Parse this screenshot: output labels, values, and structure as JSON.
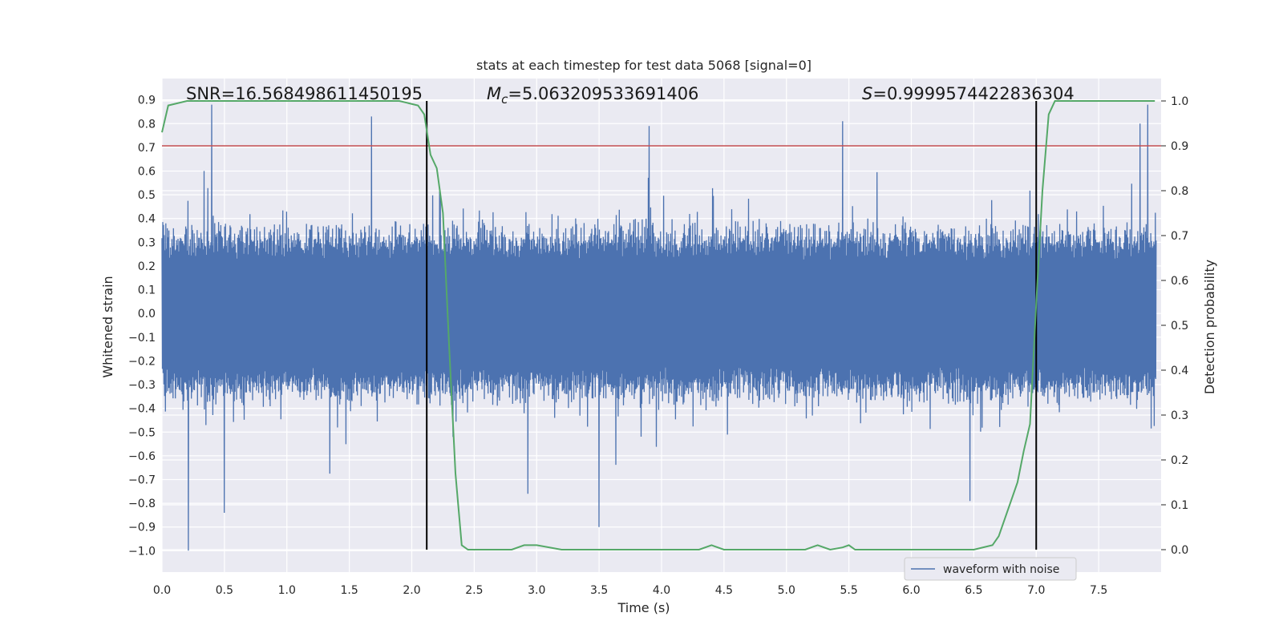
{
  "colors": {
    "background": "#eaeaf2",
    "grid": "#ffffff",
    "waveform": "#4c72b0",
    "detection": "#55a868",
    "threshold": "#c44e52",
    "marker": "#000000"
  },
  "chart_data": {
    "type": "line",
    "title": "stats at each timestep for test data 5068 [signal=0]",
    "xlabel": "Time (s)",
    "ylabel": "Whitened strain",
    "y2label": "Detection probability",
    "xlim": [
      0.0,
      8.0
    ],
    "ylim": [
      -1.09,
      0.99
    ],
    "y2lim": [
      -0.05,
      1.05
    ],
    "xticks": [
      "0.0",
      "0.5",
      "1.0",
      "1.5",
      "2.0",
      "2.5",
      "3.0",
      "3.5",
      "4.0",
      "4.5",
      "5.0",
      "5.5",
      "6.0",
      "6.5",
      "7.0",
      "7.5"
    ],
    "xtick_values": [
      0.0,
      0.5,
      1.0,
      1.5,
      2.0,
      2.5,
      3.0,
      3.5,
      4.0,
      4.5,
      5.0,
      5.5,
      6.0,
      6.5,
      7.0,
      7.5
    ],
    "yticks": [
      "0.9",
      "0.8",
      "0.7",
      "0.6",
      "0.5",
      "0.4",
      "0.3",
      "0.2",
      "0.1",
      "0.0",
      "−0.1",
      "−0.2",
      "−0.3",
      "−0.4",
      "−0.5",
      "−0.6",
      "−0.7",
      "−0.8",
      "−0.9",
      "−1.0"
    ],
    "ytick_values": [
      0.9,
      0.8,
      0.7,
      0.6,
      0.5,
      0.4,
      0.3,
      0.2,
      0.1,
      0.0,
      -0.1,
      -0.2,
      -0.3,
      -0.4,
      -0.5,
      -0.6,
      -0.7,
      -0.8,
      -0.9,
      -1.0
    ],
    "y2ticks": [
      "1.0",
      "0.9",
      "0.8",
      "0.7",
      "0.6",
      "0.5",
      "0.4",
      "0.3",
      "0.2",
      "0.1",
      "0.0"
    ],
    "y2tick_values": [
      1.0,
      0.9,
      0.8,
      0.7,
      0.6,
      0.5,
      0.4,
      0.3,
      0.2,
      0.1,
      0.0
    ],
    "annotations": {
      "snr": "SNR=16.568498611450195",
      "mc_symbol": "M",
      "mc_sub": "c",
      "mc_value": "=5.063209533691406",
      "s_symbol": "S",
      "s_value": "=0.9999574422836304"
    },
    "threshold_level": 0.9,
    "vertical_markers": [
      2.12,
      7.0
    ],
    "legend": {
      "label": "waveform with noise",
      "placement": "lower-right"
    },
    "waveform": {
      "name": "waveform with noise",
      "description_range": [
        -1.0,
        0.88
      ],
      "notable_peaks": [
        {
          "x": 0.4,
          "y": 0.88
        },
        {
          "x": 0.21,
          "y": -1.0
        },
        {
          "x": 3.5,
          "y": -0.9
        },
        {
          "x": 1.68,
          "y": 0.83
        },
        {
          "x": 5.45,
          "y": 0.81
        },
        {
          "x": 7.89,
          "y": 0.88
        },
        {
          "x": 0.5,
          "y": -0.84
        },
        {
          "x": 6.47,
          "y": -0.79
        },
        {
          "x": 2.93,
          "y": -0.76
        },
        {
          "x": 3.9,
          "y": 0.79
        },
        {
          "x": 7.83,
          "y": 0.8
        }
      ]
    },
    "detection_probability": {
      "name": "detection probability",
      "x": [
        0.0,
        0.05,
        0.2,
        0.5,
        1.0,
        1.5,
        1.9,
        2.05,
        2.1,
        2.15,
        2.2,
        2.25,
        2.3,
        2.35,
        2.4,
        2.45,
        2.6,
        2.8,
        2.9,
        3.0,
        3.2,
        3.5,
        4.0,
        4.3,
        4.4,
        4.5,
        4.7,
        5.0,
        5.15,
        5.25,
        5.35,
        5.45,
        5.5,
        5.55,
        5.65,
        6.0,
        6.5,
        6.65,
        6.7,
        6.75,
        6.8,
        6.85,
        6.9,
        6.95,
        7.0,
        7.05,
        7.1,
        7.15,
        7.25,
        7.5,
        7.95
      ],
      "y": [
        0.93,
        0.99,
        1.0,
        1.0,
        1.0,
        1.0,
        1.0,
        0.99,
        0.97,
        0.88,
        0.85,
        0.75,
        0.45,
        0.17,
        0.01,
        0.0,
        0.0,
        0.0,
        0.01,
        0.01,
        0.0,
        0.0,
        0.0,
        0.0,
        0.01,
        0.0,
        0.0,
        0.0,
        0.0,
        0.01,
        0.0,
        0.005,
        0.01,
        0.0,
        0.0,
        0.0,
        0.0,
        0.01,
        0.03,
        0.07,
        0.11,
        0.15,
        0.22,
        0.28,
        0.55,
        0.8,
        0.97,
        1.0,
        1.0,
        1.0,
        1.0
      ]
    }
  }
}
